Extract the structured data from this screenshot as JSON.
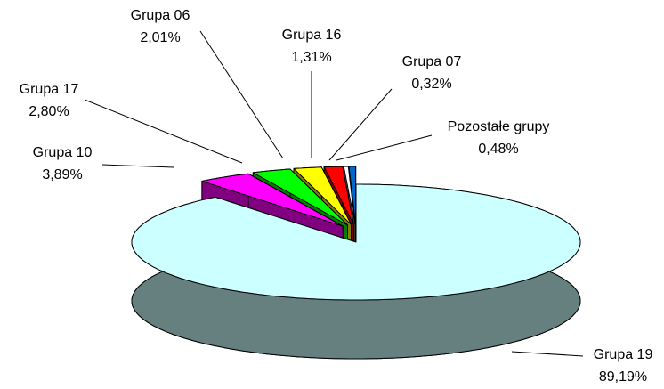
{
  "chart_data": {
    "type": "pie",
    "categories": [
      "Grupa 19",
      "Grupa 10",
      "Grupa 17",
      "Grupa 06",
      "Grupa 16",
      "Grupa 07",
      "Pozostałe grupy"
    ],
    "values": [
      89.19,
      3.89,
      2.8,
      2.01,
      1.31,
      0.32,
      0.48
    ],
    "value_labels": [
      "89,19%",
      "3,89%",
      "2,80%",
      "2,01%",
      "1,31%",
      "0,32%",
      "0,48%"
    ],
    "colors": [
      "#ccffff",
      "#ff00ff",
      "#00ff00",
      "#ffff00",
      "#ff0000",
      "#ffffff",
      "#0066cc"
    ]
  }
}
